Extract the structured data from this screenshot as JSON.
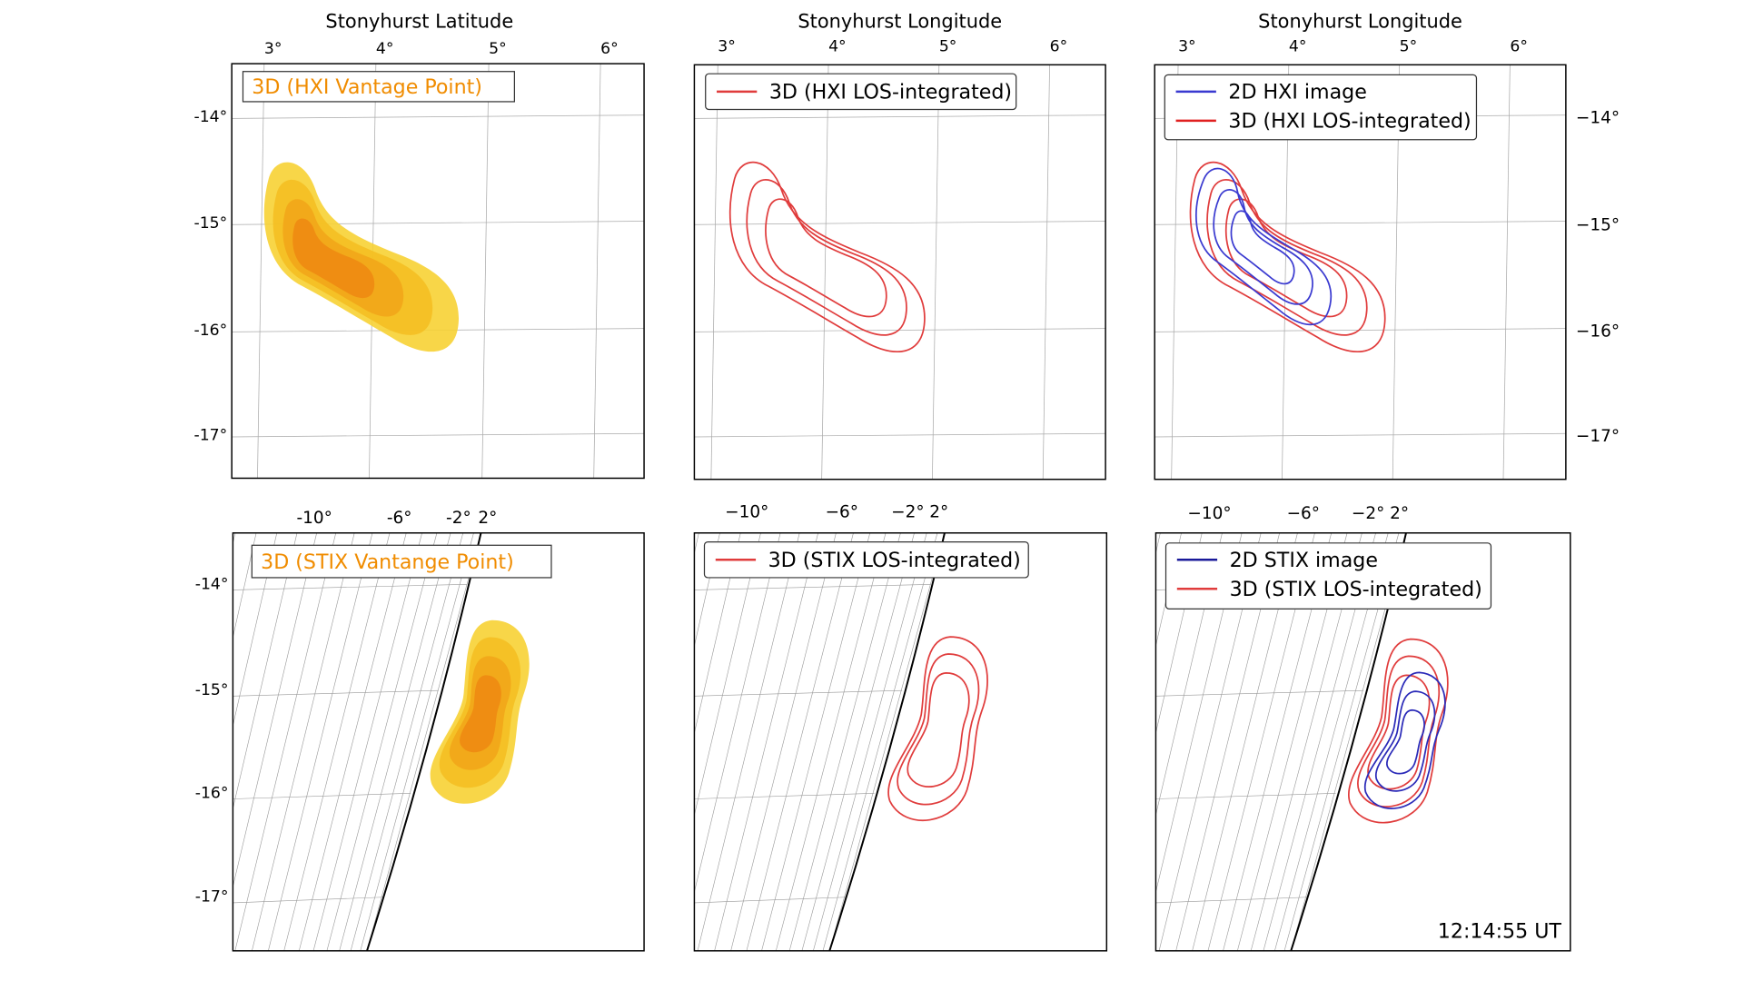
{
  "panels": [
    {
      "top_axis_label": "Stonyhurst Latitude",
      "top_ticks": [
        "3°",
        "4°",
        "5°",
        "6°"
      ],
      "side_ticks": [
        "-14°",
        "-15°",
        "-16°",
        "-17°"
      ],
      "legend": [
        "3D (HXI Vantage Point)"
      ]
    },
    {
      "top_axis_label": "Stonyhurst Longitude",
      "top_ticks": [
        "3°",
        "4°",
        "5°",
        "6°"
      ],
      "legend": [
        "3D (HXI LOS-integrated)"
      ]
    },
    {
      "top_axis_label": "Stonyhurst Longitude",
      "top_ticks": [
        "3°",
        "4°",
        "5°",
        "6°"
      ],
      "side_ticks": [
        "−14°",
        "−15°",
        "−16°",
        "−17°"
      ],
      "legend": [
        "2D HXI image",
        "3D (HXI LOS-integrated)"
      ]
    },
    {
      "top_ticks": [
        "-10°",
        "-6°",
        "-2°",
        "2°"
      ],
      "side_ticks": [
        "-14°",
        "-15°",
        "-16°",
        "-17°"
      ],
      "legend": [
        "3D (STIX Vantange Point)"
      ]
    },
    {
      "top_ticks": [
        "−10°",
        "−6°",
        "−2°",
        "2°"
      ],
      "legend": [
        "3D (STIX LOS-integrated)"
      ]
    },
    {
      "top_ticks": [
        "−10°",
        "−6°",
        "−2°",
        "2°"
      ],
      "legend": [
        "2D STIX image",
        "3D (STIX LOS-integrated)"
      ]
    }
  ],
  "timestamp": "12:14:55 UT"
}
